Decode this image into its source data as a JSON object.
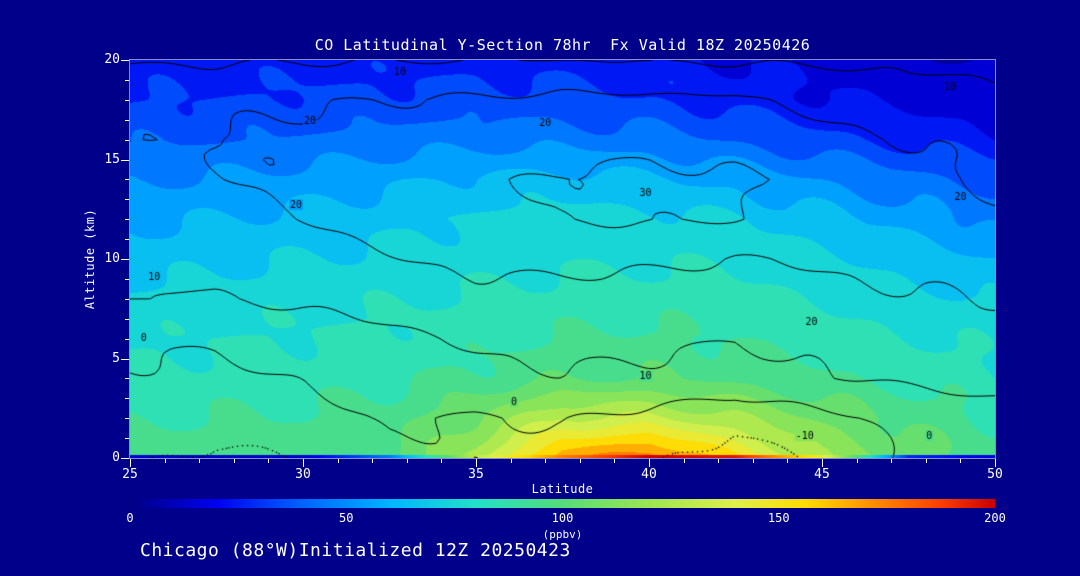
{
  "title": "CO Latitudinal Y-Section 78hr  Fx Valid 18Z 20250426",
  "footer": "Chicago (88°W)Initialized 12Z 20250423",
  "colors": {
    "background": "#00008B",
    "text": "#FFFFFF",
    "contour_line": "#000000"
  },
  "axes": {
    "x_label": "Latitude",
    "y_label": "Altitude (km)",
    "x_range": [
      25,
      50
    ],
    "y_range": [
      0,
      20
    ],
    "x_ticks": [
      25,
      30,
      35,
      40,
      45,
      50
    ],
    "y_ticks": [
      0,
      5,
      10,
      15,
      20
    ]
  },
  "colorbar": {
    "label": "(ppbv)",
    "min": 0,
    "max": 200,
    "ticks": [
      0,
      50,
      100,
      150,
      200
    ],
    "stops": [
      {
        "t": 0.0,
        "c": "#000082"
      },
      {
        "t": 0.1,
        "c": "#0000F0"
      },
      {
        "t": 0.2,
        "c": "#0064FF"
      },
      {
        "t": 0.3,
        "c": "#00B4FF"
      },
      {
        "t": 0.4,
        "c": "#22E1C8"
      },
      {
        "t": 0.5,
        "c": "#55DC78"
      },
      {
        "t": 0.6,
        "c": "#9BE650"
      },
      {
        "t": 0.7,
        "c": "#E1F04B"
      },
      {
        "t": 0.78,
        "c": "#FFDC00"
      },
      {
        "t": 0.87,
        "c": "#FF8200"
      },
      {
        "t": 0.94,
        "c": "#FA3C00"
      },
      {
        "t": 1.0,
        "c": "#C80000"
      }
    ]
  },
  "chart_data": {
    "type": "heatmap",
    "title": "CO Latitudinal Y-Section 78hr  Fx Valid 18Z 20250426",
    "xlabel": "Latitude",
    "ylabel": "Altitude (km)",
    "units": "ppbv",
    "xlim": [
      25,
      50
    ],
    "ylim": [
      0,
      20
    ],
    "color_scale": {
      "min": 0,
      "max": 200,
      "band_step": 10
    },
    "x": [
      25,
      27.5,
      30,
      32.5,
      35,
      37.5,
      40,
      42.5,
      45,
      47.5,
      50
    ],
    "y": [
      0,
      2,
      4,
      6,
      8,
      10,
      12,
      14,
      16,
      18,
      20
    ],
    "co_ppbv": [
      [
        95,
        96,
        95,
        98,
        125,
        168,
        178,
        152,
        120,
        105,
        95
      ],
      [
        88,
        90,
        90,
        94,
        110,
        130,
        132,
        122,
        108,
        97,
        90
      ],
      [
        82,
        84,
        85,
        88,
        93,
        99,
        100,
        97,
        92,
        87,
        83
      ],
      [
        78,
        80,
        81,
        83,
        86,
        90,
        92,
        89,
        85,
        81,
        77
      ],
      [
        72,
        74,
        76,
        78,
        81,
        84,
        85,
        83,
        79,
        74,
        70
      ],
      [
        65,
        67,
        70,
        73,
        76,
        78,
        79,
        77,
        72,
        66,
        60
      ],
      [
        57,
        60,
        63,
        67,
        72,
        74,
        74,
        70,
        63,
        55,
        48
      ],
      [
        48,
        51,
        54,
        58,
        62,
        64,
        62,
        57,
        50,
        43,
        37
      ],
      [
        38,
        39,
        41,
        44,
        46,
        46,
        44,
        39,
        33,
        28,
        23
      ],
      [
        30,
        30,
        32,
        33,
        35,
        33,
        31,
        26,
        21,
        17,
        14
      ],
      [
        24,
        24,
        26,
        26,
        27,
        26,
        24,
        20,
        16,
        12,
        10
      ]
    ],
    "surface_co": [
      15,
      12,
      14,
      45,
      130,
      175,
      200,
      195,
      145,
      28,
      16
    ],
    "overlay_contours": {
      "levels": [
        -10,
        0,
        10,
        20,
        30
      ],
      "negative_style": "dotted",
      "values": [
        [
          -8,
          -12,
          -9,
          -3,
          0,
          -5,
          -8,
          -14,
          -8,
          2,
          4
        ],
        [
          -4,
          -6,
          -4,
          1,
          -1,
          1,
          -3,
          -7,
          -2,
          3,
          5
        ],
        [
          -1,
          -2,
          0,
          4,
          7,
          9,
          8,
          6,
          9,
          12,
          14
        ],
        [
          1,
          1,
          4,
          8,
          11,
          13,
          12,
          10,
          13,
          16,
          18
        ],
        [
          10,
          9,
          12,
          15,
          17,
          16,
          15,
          14,
          17,
          19,
          21
        ],
        [
          13,
          13,
          16,
          19,
          22,
          23,
          22,
          20,
          21,
          23,
          23
        ],
        [
          16,
          17,
          20,
          24,
          27,
          30,
          31,
          30,
          27,
          24,
          21
        ],
        [
          18,
          19,
          22,
          25,
          28,
          31,
          32,
          31,
          28,
          23,
          19
        ],
        [
          19,
          20,
          22,
          24,
          25,
          27,
          28,
          26,
          23,
          20,
          17
        ],
        [
          17,
          18,
          19,
          20,
          21,
          22,
          22,
          21,
          18,
          14,
          12
        ],
        [
          9,
          9,
          9.5,
          9.5,
          10,
          10,
          9.5,
          9,
          8.5,
          8,
          7.5
        ]
      ]
    },
    "contour_labels": [
      {
        "text": "10",
        "lat": 32.8,
        "alt": 19.4
      },
      {
        "text": "10",
        "lat": 48.7,
        "alt": 18.6
      },
      {
        "text": "20",
        "lat": 30.2,
        "alt": 16.9
      },
      {
        "text": "20",
        "lat": 37.0,
        "alt": 16.8
      },
      {
        "text": "30",
        "lat": 39.9,
        "alt": 13.3
      },
      {
        "text": "20",
        "lat": 29.8,
        "alt": 12.7
      },
      {
        "text": "20",
        "lat": 49.0,
        "alt": 13.1
      },
      {
        "text": "10",
        "lat": 25.7,
        "alt": 9.1
      },
      {
        "text": "0",
        "lat": 25.4,
        "alt": 6.0
      },
      {
        "text": "20",
        "lat": 44.7,
        "alt": 6.8
      },
      {
        "text": "10",
        "lat": 39.9,
        "alt": 4.1
      },
      {
        "text": "0",
        "lat": 36.1,
        "alt": 2.8
      },
      {
        "text": "-10",
        "lat": 44.5,
        "alt": 1.1
      },
      {
        "text": "0",
        "lat": 48.1,
        "alt": 1.1
      }
    ]
  }
}
